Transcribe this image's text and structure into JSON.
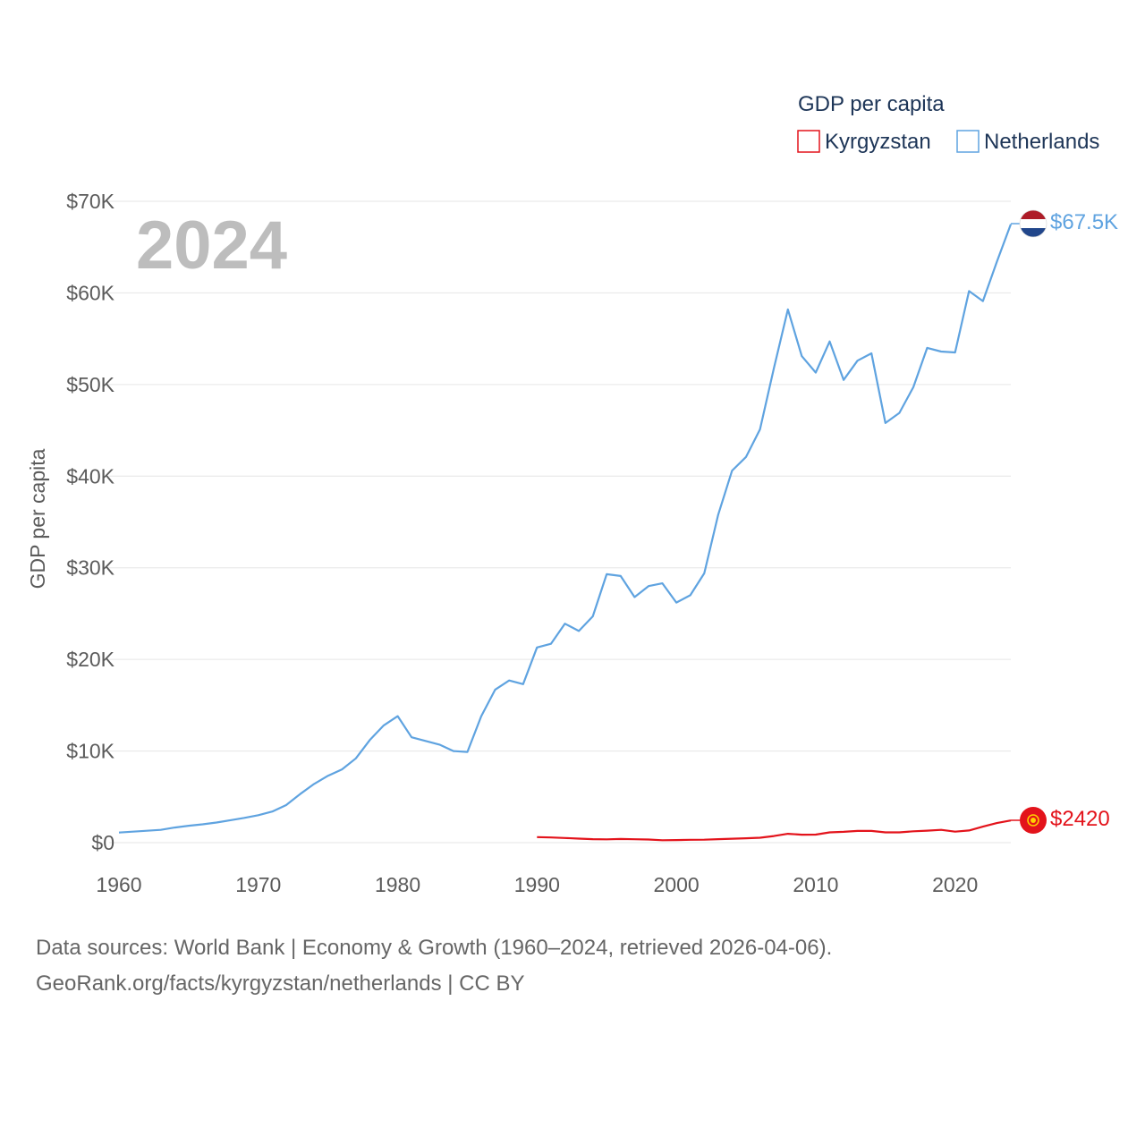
{
  "colors": {
    "kyrgyzstan": "#e3131b",
    "netherlands": "#5fa3e0",
    "grid": "#e6e6e6",
    "text": "#5b5b5b"
  },
  "chart_data": {
    "type": "line",
    "title": "GDP per capita",
    "year_label": "2024",
    "xlabel": "",
    "ylabel": "GDP per capita",
    "xlim": [
      1960,
      2024
    ],
    "ylim": [
      0,
      70000
    ],
    "x_ticks": [
      "1960",
      "1970",
      "1980",
      "1990",
      "2000",
      "2010",
      "2020"
    ],
    "y_ticks": [
      "$0",
      "$10K",
      "$20K",
      "$30K",
      "$40K",
      "$50K",
      "$60K",
      "$70K"
    ],
    "legend": {
      "title": "GDP per capita",
      "placement": "top-right"
    },
    "series": [
      {
        "name": "Kyrgyzstan",
        "color": "#e3131b",
        "end_label": "$2420",
        "x": [
          1990,
          1991,
          1992,
          1993,
          1994,
          1995,
          1996,
          1997,
          1998,
          1999,
          2000,
          2001,
          2002,
          2003,
          2004,
          2005,
          2006,
          2007,
          2008,
          2009,
          2010,
          2011,
          2012,
          2013,
          2014,
          2015,
          2016,
          2017,
          2018,
          2019,
          2020,
          2021,
          2022,
          2023,
          2024
        ],
        "values": [
          610,
          570,
          510,
          440,
          380,
          360,
          400,
          370,
          340,
          260,
          280,
          310,
          320,
          380,
          430,
          480,
          540,
          720,
          970,
          870,
          880,
          1120,
          1180,
          1280,
          1280,
          1120,
          1120,
          1240,
          1310,
          1400,
          1200,
          1330,
          1750,
          2140,
          2420
        ]
      },
      {
        "name": "Netherlands",
        "color": "#5fa3e0",
        "end_label": "$67.5K",
        "x": [
          1960,
          1961,
          1962,
          1963,
          1964,
          1965,
          1966,
          1967,
          1968,
          1969,
          1970,
          1971,
          1972,
          1973,
          1974,
          1975,
          1976,
          1977,
          1978,
          1979,
          1980,
          1981,
          1982,
          1983,
          1984,
          1985,
          1986,
          1987,
          1988,
          1989,
          1990,
          1991,
          1992,
          1993,
          1994,
          1995,
          1996,
          1997,
          1998,
          1999,
          2000,
          2001,
          2002,
          2003,
          2004,
          2005,
          2006,
          2007,
          2008,
          2009,
          2010,
          2011,
          2012,
          2013,
          2014,
          2015,
          2016,
          2017,
          2018,
          2019,
          2020,
          2021,
          2022,
          2023,
          2024
        ],
        "values": [
          1100,
          1200,
          1300,
          1400,
          1650,
          1850,
          2000,
          2200,
          2450,
          2700,
          3000,
          3400,
          4100,
          5300,
          6400,
          7300,
          8000,
          9200,
          11200,
          12800,
          13800,
          11500,
          11100,
          10700,
          10000,
          9900,
          13800,
          16700,
          17700,
          17300,
          21300,
          21700,
          23900,
          23100,
          24700,
          29300,
          29100,
          26800,
          28000,
          28300,
          26200,
          27000,
          29400,
          35800,
          40600,
          42100,
          45100,
          51800,
          58200,
          53100,
          51300,
          54700,
          50500,
          52600,
          53400,
          45800,
          46900,
          49700,
          54000,
          53600,
          53500,
          60200,
          59100,
          63400,
          67500
        ]
      }
    ]
  },
  "footer": {
    "line1": "Data sources: World Bank | Economy & Growth (1960–2024, retrieved 2026-04-06).",
    "line2": "GeoRank.org/facts/kyrgyzstan/netherlands | CC BY"
  }
}
